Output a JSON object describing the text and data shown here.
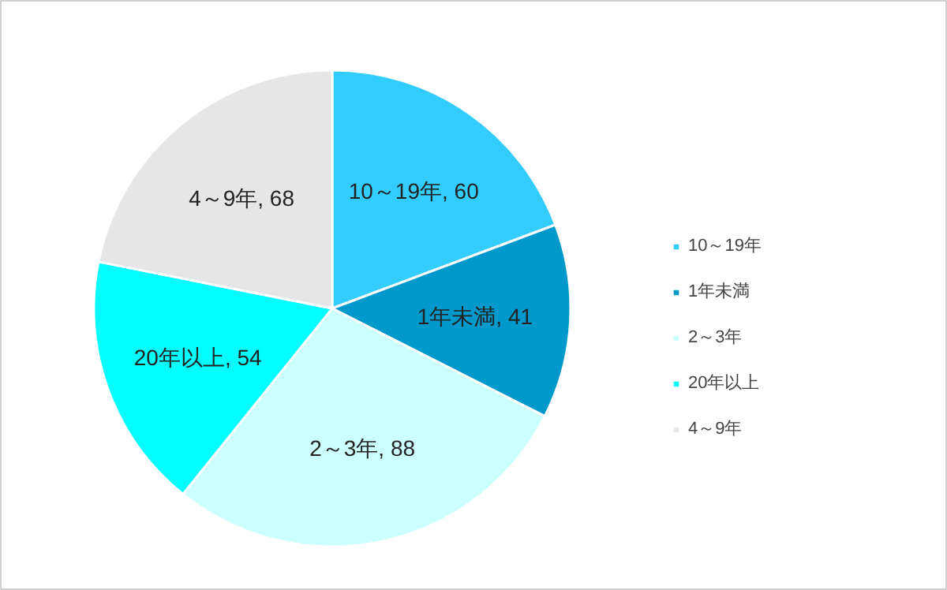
{
  "chart_data": {
    "type": "pie",
    "categories": [
      "10～19年",
      "1年未満",
      "2～3年",
      "20年以上",
      "4～9年"
    ],
    "values": [
      60,
      41,
      88,
      54,
      68
    ],
    "colors": [
      "#33ccff",
      "#0099cc",
      "#ccffff",
      "#00ffff",
      "#e6e6e6"
    ],
    "value_labels": [
      "10～19年, 60",
      "1年未満, 41",
      "2～3年, 88",
      "20年以上, 54",
      "4～9年, 68"
    ],
    "legend": "right"
  }
}
